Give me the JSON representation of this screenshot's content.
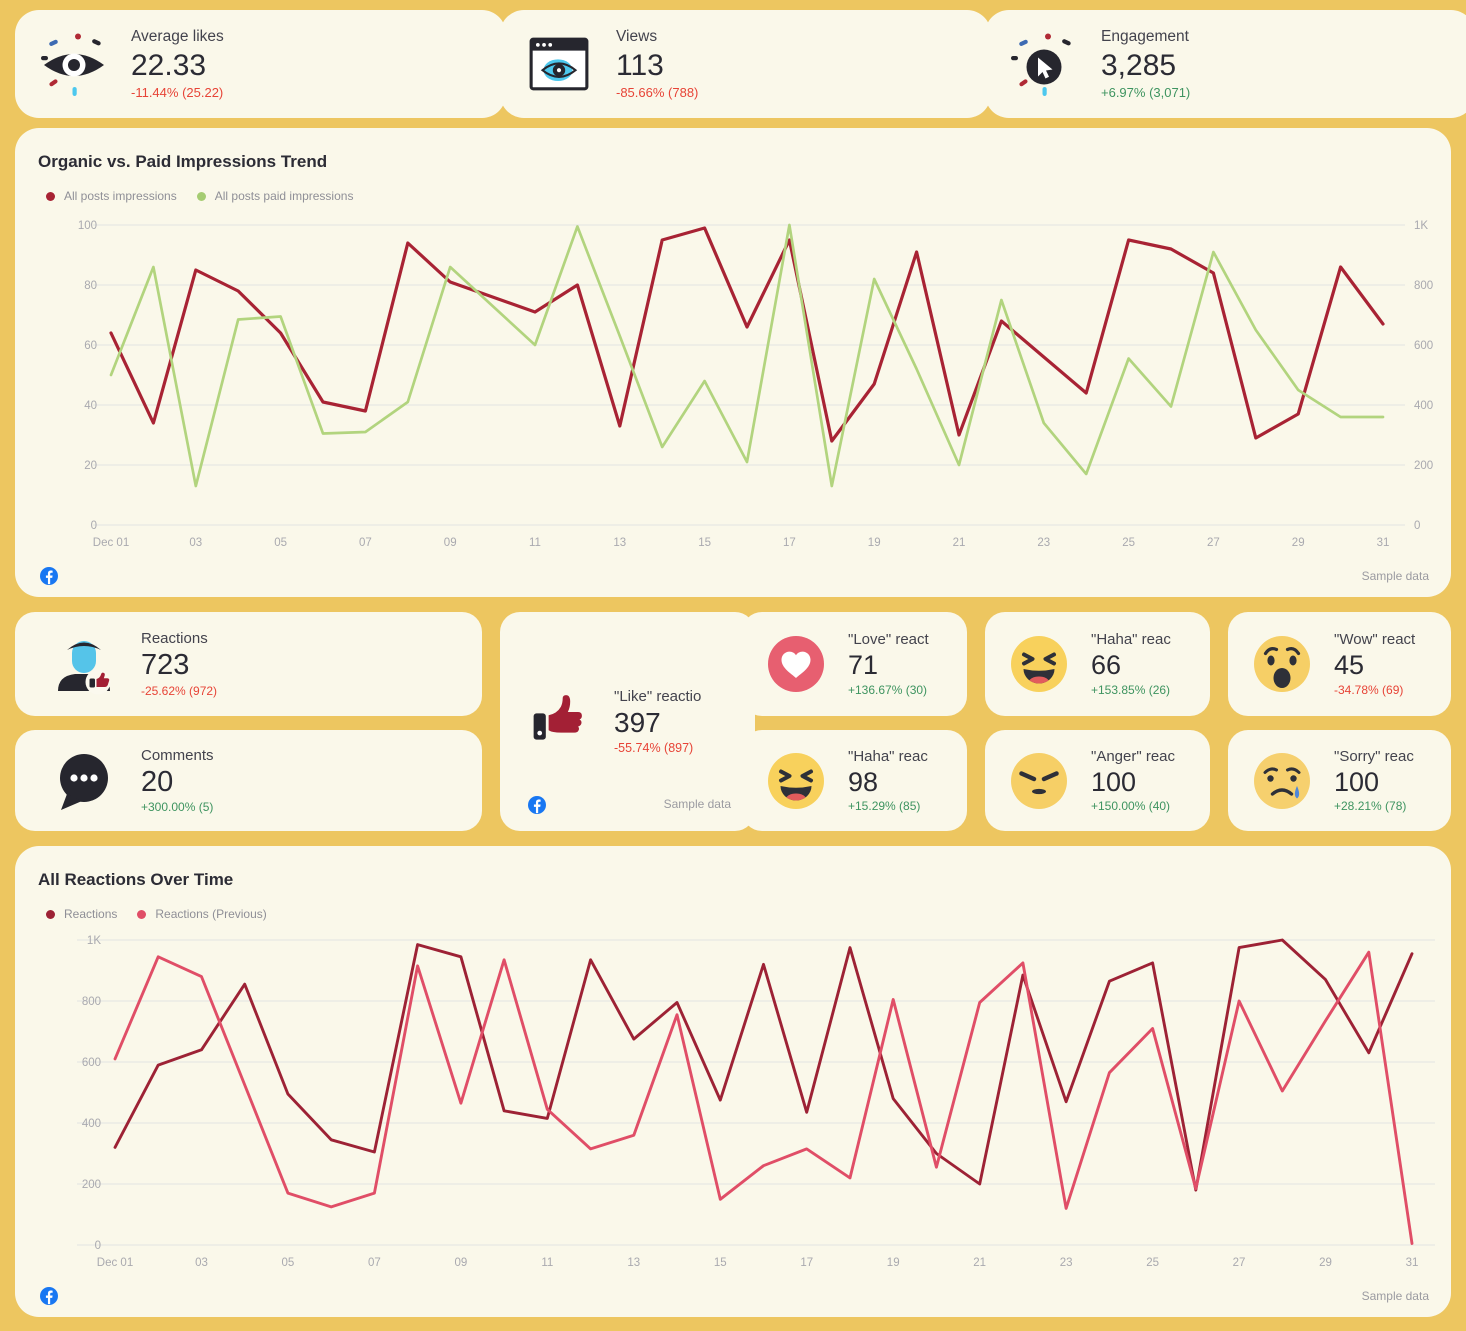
{
  "colors": {
    "page_bg": "#edc660",
    "card_bg": "#faf8ea",
    "positive_text": "#3e9460",
    "negative_text": "#e74437",
    "impressions_line": "#a82334",
    "paid_impressions_line": "#b2d47e",
    "reactions_line": "#9d2235",
    "reactions_previous_line": "#e04e67",
    "facebook_blue": "#1877f2",
    "gridline": "#e2e5e3"
  },
  "sample_note": "Sample data",
  "top_cards": [
    {
      "icon": "eye-sparkle-icon",
      "title": "Average likes",
      "value": "22.33",
      "delta": "-11.44% (25.22)",
      "trend": "down"
    },
    {
      "icon": "browser-eye-icon",
      "title": "Views",
      "value": "113",
      "delta": "-85.66% (788)",
      "trend": "down"
    },
    {
      "icon": "cursor-sparkle-icon",
      "title": "Engagement",
      "value": "3,285",
      "delta": "+6.97% (3,071)",
      "trend": "up"
    }
  ],
  "impressions_chart": {
    "title": "Organic vs. Paid Impressions Trend",
    "legend": [
      {
        "label": "All posts impressions",
        "color": "#a82334"
      },
      {
        "label": "All posts paid impressions",
        "color": "#a5cc72"
      }
    ]
  },
  "mid_cards": {
    "reactions": {
      "icon": "person-thumb-icon",
      "title": "Reactions",
      "value": "723",
      "delta": "-25.62% (972)",
      "trend": "down"
    },
    "comments": {
      "icon": "chat-bubble-icon",
      "title": "Comments",
      "value": "20",
      "delta": "+300.00% (5)",
      "trend": "up"
    },
    "like": {
      "icon": "thumb-up-icon",
      "title": "\"Like\" reactio",
      "value": "397",
      "delta": "-55.74% (897)",
      "trend": "down"
    }
  },
  "reaction_cards": [
    {
      "icon": "love-emoji-icon",
      "title": "\"Love\" react",
      "value": "71",
      "delta": "+136.67% (30)",
      "trend": "up"
    },
    {
      "icon": "haha-emoji-icon",
      "title": "\"Haha\" reac",
      "value": "66",
      "delta": "+153.85% (26)",
      "trend": "up"
    },
    {
      "icon": "wow-emoji-icon",
      "title": "\"Wow\" react",
      "value": "45",
      "delta": "-34.78% (69)",
      "trend": "down"
    },
    {
      "icon": "haha-emoji-icon",
      "title": "\"Haha\" reac",
      "value": "98",
      "delta": "+15.29% (85)",
      "trend": "up"
    },
    {
      "icon": "anger-emoji-icon",
      "title": "\"Anger\" reac",
      "value": "100",
      "delta": "+150.00% (40)",
      "trend": "up"
    },
    {
      "icon": "sorry-emoji-icon",
      "title": "\"Sorry\" reac",
      "value": "100",
      "delta": "+28.21% (78)",
      "trend": "up"
    }
  ],
  "reactions_chart": {
    "title": "All Reactions Over Time",
    "legend": [
      {
        "label": "Reactions",
        "color": "#9d2235"
      },
      {
        "label": "Reactions (Previous)",
        "color": "#e04e67"
      }
    ]
  },
  "chart_data": [
    {
      "type": "line",
      "title": "Organic vs. Paid Impressions Trend",
      "x_ticks": [
        "Dec 01",
        "03",
        "05",
        "07",
        "09",
        "11",
        "13",
        "15",
        "17",
        "19",
        "21",
        "23",
        "25",
        "27",
        "29",
        "31"
      ],
      "grid_color": "#e2e5e3",
      "left_axis": {
        "min": 0,
        "max": 100,
        "ticks": [
          "0",
          "20",
          "40",
          "60",
          "80",
          "100"
        ]
      },
      "right_axis": {
        "min": 0,
        "max": 1000,
        "ticks": [
          "0",
          "200",
          "400",
          "600",
          "800",
          "1K"
        ]
      },
      "series": [
        {
          "name": "All posts impressions",
          "axis": "left",
          "color": "#a82334",
          "stroke_width": 3.2,
          "values": [
            64,
            34,
            85,
            78,
            64,
            41,
            38,
            94,
            81,
            76,
            71,
            80,
            33,
            95,
            99,
            66,
            95,
            28,
            47,
            91,
            30,
            68,
            56,
            44,
            95,
            92,
            84,
            29,
            37,
            86,
            67
          ]
        },
        {
          "name": "All posts paid impressions",
          "axis": "right",
          "color": "#b2d47e",
          "stroke_width": 2.7,
          "values": [
            500,
            860,
            130,
            685,
            695,
            305,
            310,
            410,
            860,
            730,
            600,
            995,
            630,
            260,
            480,
            210,
            1000,
            130,
            820,
            520,
            200,
            750,
            340,
            170,
            555,
            395,
            910,
            650,
            450,
            360,
            360
          ]
        }
      ]
    },
    {
      "type": "line",
      "title": "All Reactions Over Time",
      "x_ticks": [
        "Dec 01",
        "03",
        "05",
        "07",
        "09",
        "11",
        "13",
        "15",
        "17",
        "19",
        "21",
        "23",
        "25",
        "27",
        "29",
        "31"
      ],
      "grid_color": "#e2e5e3",
      "left_axis": {
        "min": 0,
        "max": 1000,
        "ticks": [
          "0",
          "200",
          "400",
          "600",
          "800",
          "1K"
        ]
      },
      "series": [
        {
          "name": "Reactions",
          "axis": "left",
          "color": "#9d2235",
          "stroke_width": 2.9,
          "values": [
            320,
            590,
            640,
            855,
            495,
            345,
            305,
            985,
            945,
            440,
            415,
            935,
            675,
            795,
            475,
            920,
            435,
            975,
            480,
            300,
            200,
            885,
            470,
            865,
            925,
            180,
            975,
            1000,
            870,
            630,
            955
          ]
        },
        {
          "name": "Reactions (Previous)",
          "axis": "left",
          "color": "#e04e67",
          "stroke_width": 2.9,
          "values": [
            610,
            945,
            880,
            525,
            170,
            125,
            170,
            915,
            465,
            935,
            445,
            315,
            360,
            755,
            150,
            260,
            315,
            220,
            805,
            255,
            795,
            925,
            120,
            565,
            710,
            185,
            800,
            505,
            735,
            960,
            5
          ]
        }
      ]
    }
  ]
}
